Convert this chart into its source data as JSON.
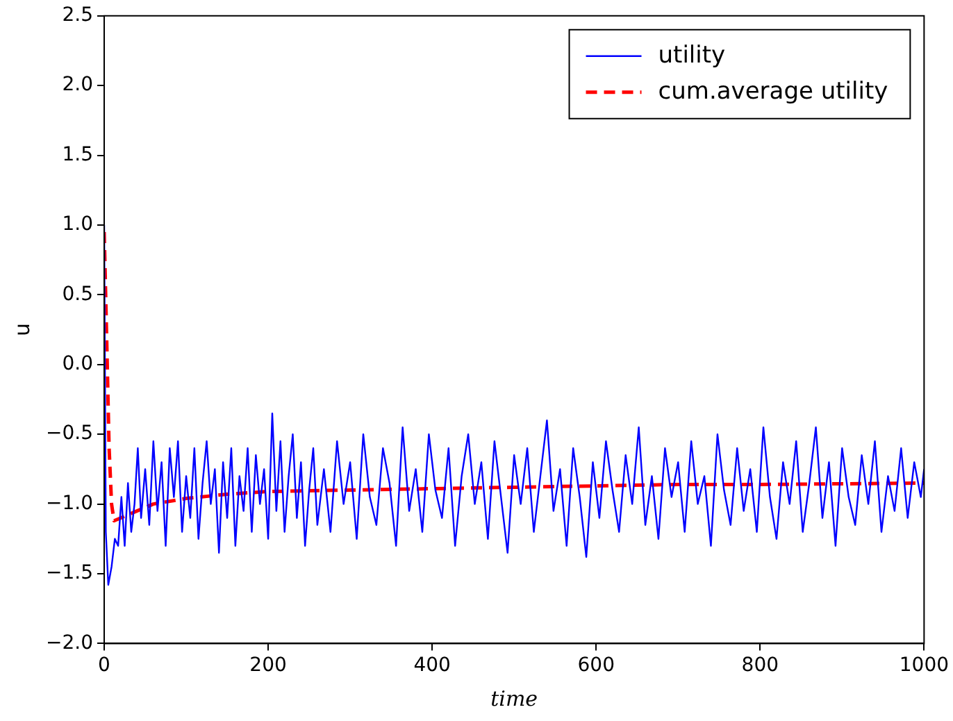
{
  "chart_data": {
    "type": "line",
    "xlabel": "time",
    "ylabel": "u",
    "xlim": [
      0,
      1000
    ],
    "xticks": [
      0,
      200,
      400,
      600,
      800,
      1000
    ],
    "ylim": [
      -2.0,
      2.5
    ],
    "yticks": [
      {
        "value": -2,
        "label": "−2.0"
      },
      {
        "value": -1.5,
        "label": "−1.5"
      },
      {
        "value": -1,
        "label": "−1.0"
      },
      {
        "value": -0.5,
        "label": "−0.5"
      },
      {
        "value": 0,
        "label": "0.0"
      },
      {
        "value": 0.5,
        "label": "0.5"
      },
      {
        "value": 1,
        "label": "1.0"
      },
      {
        "value": 1.5,
        "label": "1.5"
      },
      {
        "value": 2,
        "label": "2.0"
      },
      {
        "value": 2.5,
        "label": "2.5"
      }
    ],
    "grid": false,
    "legend": "top right",
    "marker": "none",
    "series": [
      {
        "name": "utility",
        "color": "#0000ff",
        "line_style": "solid",
        "x": [
          0,
          2,
          5,
          9,
          13,
          17,
          21,
          25,
          29,
          33,
          37,
          41,
          45,
          50,
          55,
          60,
          65,
          70,
          75,
          80,
          85,
          90,
          95,
          100,
          105,
          110,
          115,
          120,
          125,
          130,
          135,
          140,
          145,
          150,
          155,
          160,
          165,
          170,
          175,
          180,
          185,
          190,
          195,
          200,
          205,
          210,
          215,
          220,
          225,
          230,
          235,
          240,
          245,
          250,
          255,
          260,
          268,
          276,
          284,
          292,
          300,
          308,
          316,
          324,
          332,
          340,
          348,
          356,
          364,
          372,
          380,
          388,
          396,
          404,
          412,
          420,
          428,
          436,
          444,
          452,
          460,
          468,
          476,
          484,
          492,
          500,
          508,
          516,
          524,
          532,
          540,
          548,
          556,
          564,
          572,
          580,
          588,
          596,
          604,
          612,
          620,
          628,
          636,
          644,
          652,
          660,
          668,
          676,
          684,
          692,
          700,
          708,
          716,
          724,
          732,
          740,
          748,
          756,
          764,
          772,
          780,
          788,
          796,
          804,
          812,
          820,
          828,
          836,
          844,
          852,
          860,
          868,
          876,
          884,
          892,
          900,
          908,
          916,
          924,
          932,
          940,
          948,
          956,
          964,
          972,
          980,
          988,
          996,
          1000
        ],
        "values": [
          1.0,
          -1.2,
          -1.58,
          -1.45,
          -1.25,
          -1.3,
          -0.95,
          -1.3,
          -0.85,
          -1.2,
          -1.0,
          -0.6,
          -1.1,
          -0.75,
          -1.15,
          -0.55,
          -1.05,
          -0.7,
          -1.3,
          -0.6,
          -0.95,
          -0.55,
          -1.2,
          -0.8,
          -1.1,
          -0.6,
          -1.25,
          -0.85,
          -0.55,
          -1.0,
          -0.75,
          -1.35,
          -0.7,
          -1.1,
          -0.6,
          -1.3,
          -0.8,
          -1.05,
          -0.6,
          -1.2,
          -0.65,
          -1.0,
          -0.75,
          -1.25,
          -0.35,
          -1.05,
          -0.55,
          -1.2,
          -0.8,
          -0.5,
          -1.1,
          -0.7,
          -1.3,
          -0.9,
          -0.6,
          -1.15,
          -0.75,
          -1.2,
          -0.55,
          -1.0,
          -0.7,
          -1.25,
          -0.5,
          -0.95,
          -1.15,
          -0.6,
          -0.85,
          -1.3,
          -0.45,
          -1.05,
          -0.75,
          -1.2,
          -0.5,
          -0.9,
          -1.1,
          -0.6,
          -1.3,
          -0.8,
          -0.5,
          -1.0,
          -0.7,
          -1.25,
          -0.55,
          -0.95,
          -1.35,
          -0.65,
          -1.0,
          -0.6,
          -1.2,
          -0.8,
          -0.4,
          -1.05,
          -0.75,
          -1.3,
          -0.6,
          -0.95,
          -1.38,
          -0.7,
          -1.1,
          -0.55,
          -0.9,
          -1.2,
          -0.65,
          -1.0,
          -0.45,
          -1.15,
          -0.8,
          -1.25,
          -0.6,
          -0.95,
          -0.7,
          -1.2,
          -0.55,
          -1.0,
          -0.8,
          -1.3,
          -0.5,
          -0.9,
          -1.15,
          -0.6,
          -1.05,
          -0.75,
          -1.2,
          -0.45,
          -0.95,
          -1.25,
          -0.7,
          -1.0,
          -0.55,
          -1.2,
          -0.85,
          -0.45,
          -1.1,
          -0.7,
          -1.3,
          -0.6,
          -0.95,
          -1.15,
          -0.65,
          -1.0,
          -0.55,
          -1.2,
          -0.8,
          -1.05,
          -0.6,
          -1.1,
          -0.7,
          -0.95,
          -0.75
        ]
      },
      {
        "name": "cum.average utility",
        "color": "#ff0000",
        "line_style": "dashed",
        "x": [
          0,
          3,
          6,
          9,
          12,
          20,
          40,
          60,
          100,
          150,
          200,
          300,
          400,
          500,
          600,
          700,
          800,
          1000
        ],
        "values": [
          0.95,
          0.2,
          -0.6,
          -1.0,
          -1.12,
          -1.1,
          -1.05,
          -1.0,
          -0.96,
          -0.93,
          -0.91,
          -0.9,
          -0.89,
          -0.88,
          -0.87,
          -0.86,
          -0.86,
          -0.85
        ]
      }
    ]
  }
}
